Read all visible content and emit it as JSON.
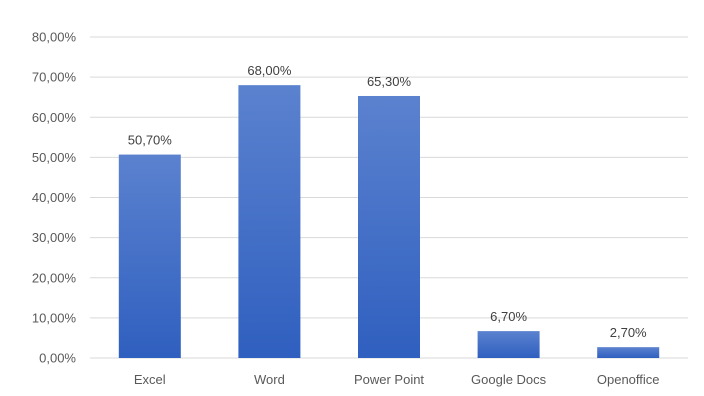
{
  "chart_data": {
    "type": "bar",
    "categories": [
      "Excel",
      "Word",
      "Power Point",
      "Google Docs",
      "Openoffice"
    ],
    "values": [
      50.7,
      68.0,
      65.3,
      6.7,
      2.7
    ],
    "data_labels": [
      "50,70%",
      "68,00%",
      "65,30%",
      "6,70%",
      "2,70%"
    ],
    "ylim": [
      0,
      80
    ],
    "y_ticks": [
      0,
      10,
      20,
      30,
      40,
      50,
      60,
      70,
      80
    ],
    "y_tick_labels": [
      "0,00%",
      "10,00%",
      "20,00%",
      "30,00%",
      "40,00%",
      "50,00%",
      "60,00%",
      "70,00%",
      "80,00%"
    ],
    "grid": true,
    "legend": "none",
    "colors": {
      "bar_top": "#5b82cf",
      "bar_bottom": "#2f5fbf",
      "grid": "#d9d9d9",
      "text": "#595959"
    }
  }
}
